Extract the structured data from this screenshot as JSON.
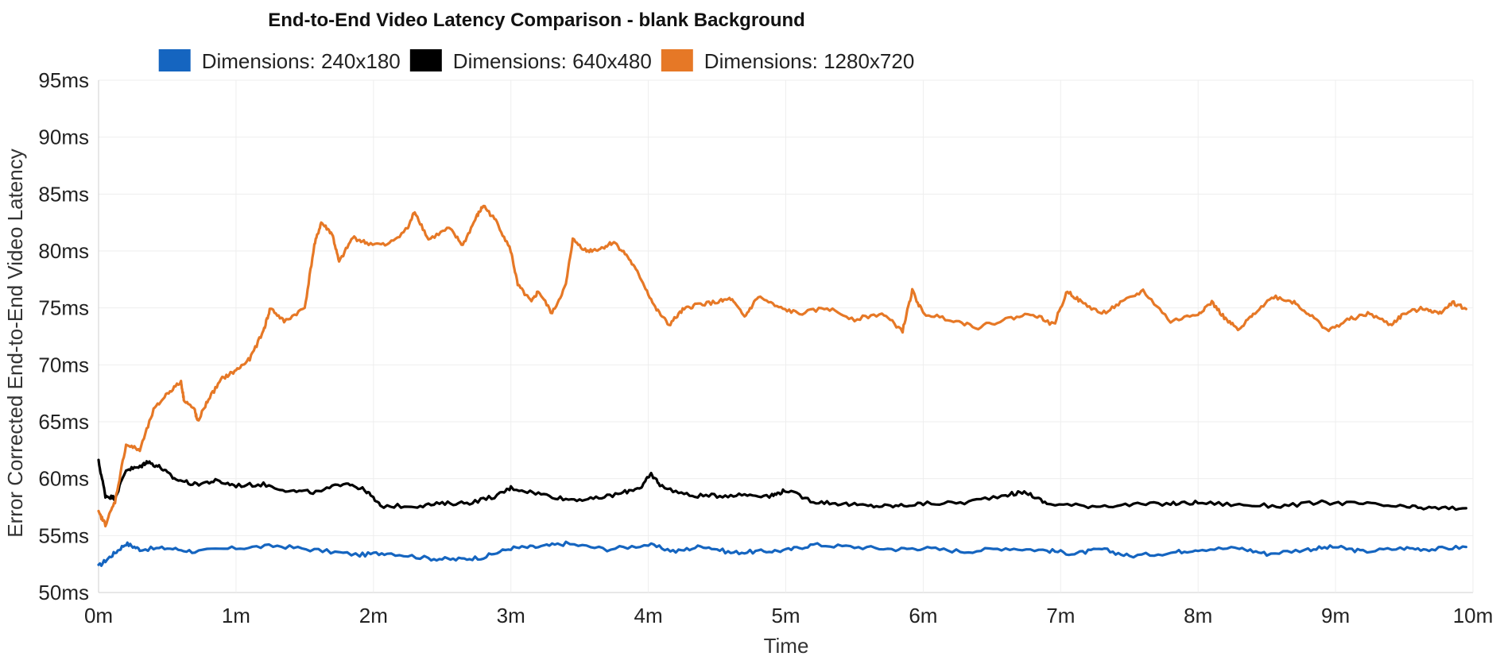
{
  "chart_data": {
    "type": "line",
    "title": "End-to-End Video Latency Comparison - blank Background",
    "xlabel": "Time",
    "ylabel": "Error Corrected End-to-End Video Latency",
    "x_unit": "minutes",
    "xlim": [
      0,
      10
    ],
    "ylim": [
      50,
      95
    ],
    "x_ticks": [
      "0m",
      "1m",
      "2m",
      "3m",
      "4m",
      "5m",
      "6m",
      "7m",
      "8m",
      "9m",
      "10m"
    ],
    "y_ticks": [
      "50ms",
      "55ms",
      "60ms",
      "65ms",
      "70ms",
      "75ms",
      "80ms",
      "85ms",
      "90ms",
      "95ms"
    ],
    "grid": true,
    "legend_position": "top",
    "series": [
      {
        "name": "Dimensions: 240x180",
        "color": "#1565c0",
        "points": [
          [
            0,
            52.3
          ],
          [
            0.1,
            53.3
          ],
          [
            0.2,
            54.3
          ],
          [
            0.3,
            53.8
          ],
          [
            0.5,
            53.9
          ],
          [
            0.7,
            53.6
          ],
          [
            1.0,
            53.9
          ],
          [
            1.3,
            54.1
          ],
          [
            1.6,
            53.7
          ],
          [
            1.9,
            53.3
          ],
          [
            2.1,
            53.5
          ],
          [
            2.4,
            53.0
          ],
          [
            2.6,
            52.9
          ],
          [
            2.8,
            53.1
          ],
          [
            3.0,
            53.9
          ],
          [
            3.2,
            54.0
          ],
          [
            3.4,
            54.3
          ],
          [
            3.7,
            53.8
          ],
          [
            4.0,
            54.2
          ],
          [
            4.2,
            53.6
          ],
          [
            4.4,
            54.1
          ],
          [
            4.6,
            53.5
          ],
          [
            4.8,
            53.6
          ],
          [
            5.0,
            53.7
          ],
          [
            5.2,
            54.2
          ],
          [
            5.5,
            54.0
          ],
          [
            5.8,
            53.8
          ],
          [
            6.0,
            53.9
          ],
          [
            6.3,
            53.6
          ],
          [
            6.6,
            53.9
          ],
          [
            6.9,
            53.7
          ],
          [
            7.1,
            53.4
          ],
          [
            7.3,
            53.8
          ],
          [
            7.5,
            53.2
          ],
          [
            7.8,
            53.5
          ],
          [
            8.0,
            53.8
          ],
          [
            8.3,
            53.9
          ],
          [
            8.5,
            53.4
          ],
          [
            8.8,
            53.8
          ],
          [
            9.0,
            54.0
          ],
          [
            9.2,
            53.6
          ],
          [
            9.5,
            53.9
          ],
          [
            9.7,
            53.8
          ],
          [
            9.95,
            54.0
          ]
        ]
      },
      {
        "name": "Dimensions: 640x480",
        "color": "#000000",
        "points": [
          [
            0,
            61.5
          ],
          [
            0.05,
            58.5
          ],
          [
            0.12,
            58.3
          ],
          [
            0.2,
            60.8
          ],
          [
            0.3,
            61.0
          ],
          [
            0.35,
            61.5
          ],
          [
            0.45,
            61.0
          ],
          [
            0.55,
            60.0
          ],
          [
            0.7,
            59.5
          ],
          [
            0.85,
            59.8
          ],
          [
            1.0,
            59.4
          ],
          [
            1.2,
            59.5
          ],
          [
            1.4,
            58.9
          ],
          [
            1.6,
            58.8
          ],
          [
            1.8,
            59.7
          ],
          [
            1.95,
            58.9
          ],
          [
            2.05,
            57.6
          ],
          [
            2.3,
            57.6
          ],
          [
            2.5,
            57.8
          ],
          [
            2.7,
            57.9
          ],
          [
            2.9,
            58.5
          ],
          [
            3.0,
            59.2
          ],
          [
            3.2,
            58.7
          ],
          [
            3.4,
            58.2
          ],
          [
            3.6,
            58.2
          ],
          [
            3.8,
            58.7
          ],
          [
            3.95,
            59.3
          ],
          [
            4.02,
            60.4
          ],
          [
            4.1,
            59.3
          ],
          [
            4.3,
            58.5
          ],
          [
            4.5,
            58.5
          ],
          [
            4.7,
            58.6
          ],
          [
            4.9,
            58.5
          ],
          [
            5.0,
            59.0
          ],
          [
            5.2,
            58.0
          ],
          [
            5.4,
            57.8
          ],
          [
            5.6,
            57.6
          ],
          [
            5.8,
            57.6
          ],
          [
            6.0,
            57.8
          ],
          [
            6.3,
            57.9
          ],
          [
            6.6,
            58.6
          ],
          [
            6.75,
            58.8
          ],
          [
            6.9,
            57.8
          ],
          [
            7.2,
            57.6
          ],
          [
            7.5,
            57.7
          ],
          [
            7.8,
            57.8
          ],
          [
            8.0,
            57.9
          ],
          [
            8.3,
            57.7
          ],
          [
            8.6,
            57.6
          ],
          [
            8.9,
            57.9
          ],
          [
            9.2,
            57.8
          ],
          [
            9.5,
            57.5
          ],
          [
            9.7,
            57.4
          ],
          [
            9.95,
            57.4
          ]
        ]
      },
      {
        "name": "Dimensions: 1280x720",
        "color": "#e67826",
        "points": [
          [
            0,
            57.0
          ],
          [
            0.05,
            56.0
          ],
          [
            0.12,
            58.0
          ],
          [
            0.2,
            63.0
          ],
          [
            0.3,
            62.5
          ],
          [
            0.4,
            66.0
          ],
          [
            0.5,
            67.5
          ],
          [
            0.6,
            68.5
          ],
          [
            0.62,
            67.0
          ],
          [
            0.7,
            66.0
          ],
          [
            0.72,
            65.0
          ],
          [
            0.8,
            67.0
          ],
          [
            0.9,
            68.8
          ],
          [
            1.0,
            69.5
          ],
          [
            1.1,
            70.5
          ],
          [
            1.2,
            73.0
          ],
          [
            1.25,
            75.0
          ],
          [
            1.35,
            73.8
          ],
          [
            1.5,
            75.0
          ],
          [
            1.57,
            80.5
          ],
          [
            1.62,
            82.5
          ],
          [
            1.7,
            81.5
          ],
          [
            1.75,
            79.0
          ],
          [
            1.85,
            81.2
          ],
          [
            1.95,
            80.7
          ],
          [
            2.1,
            80.5
          ],
          [
            2.25,
            82.0
          ],
          [
            2.3,
            83.5
          ],
          [
            2.4,
            81.0
          ],
          [
            2.55,
            82.0
          ],
          [
            2.65,
            80.5
          ],
          [
            2.75,
            83.0
          ],
          [
            2.8,
            84.0
          ],
          [
            2.9,
            82.5
          ],
          [
            3.0,
            80.0
          ],
          [
            3.05,
            77.0
          ],
          [
            3.15,
            75.5
          ],
          [
            3.2,
            76.5
          ],
          [
            3.3,
            74.5
          ],
          [
            3.4,
            77.0
          ],
          [
            3.45,
            81.0
          ],
          [
            3.55,
            80.0
          ],
          [
            3.65,
            80.2
          ],
          [
            3.75,
            80.8
          ],
          [
            3.85,
            79.5
          ],
          [
            3.95,
            77.5
          ],
          [
            4.05,
            75.0
          ],
          [
            4.15,
            73.5
          ],
          [
            4.25,
            74.8
          ],
          [
            4.35,
            75.3
          ],
          [
            4.5,
            75.5
          ],
          [
            4.6,
            75.8
          ],
          [
            4.7,
            74.2
          ],
          [
            4.8,
            76.0
          ],
          [
            4.95,
            75.0
          ],
          [
            5.1,
            74.5
          ],
          [
            5.3,
            75.0
          ],
          [
            5.5,
            74.0
          ],
          [
            5.7,
            74.5
          ],
          [
            5.85,
            73.0
          ],
          [
            5.92,
            76.5
          ],
          [
            6.0,
            74.5
          ],
          [
            6.2,
            74.0
          ],
          [
            6.4,
            73.3
          ],
          [
            6.6,
            74.0
          ],
          [
            6.8,
            74.5
          ],
          [
            6.95,
            73.5
          ],
          [
            7.05,
            76.5
          ],
          [
            7.15,
            75.5
          ],
          [
            7.3,
            74.5
          ],
          [
            7.45,
            75.5
          ],
          [
            7.6,
            76.5
          ],
          [
            7.8,
            73.8
          ],
          [
            8.0,
            74.5
          ],
          [
            8.1,
            75.5
          ],
          [
            8.2,
            74.0
          ],
          [
            8.3,
            73.0
          ],
          [
            8.4,
            74.5
          ],
          [
            8.55,
            76.0
          ],
          [
            8.7,
            75.5
          ],
          [
            8.8,
            74.5
          ],
          [
            8.95,
            73.0
          ],
          [
            9.1,
            74.0
          ],
          [
            9.25,
            74.5
          ],
          [
            9.4,
            73.5
          ],
          [
            9.5,
            74.5
          ],
          [
            9.65,
            75.0
          ],
          [
            9.75,
            74.5
          ],
          [
            9.85,
            75.5
          ],
          [
            9.95,
            74.9
          ]
        ]
      }
    ]
  }
}
